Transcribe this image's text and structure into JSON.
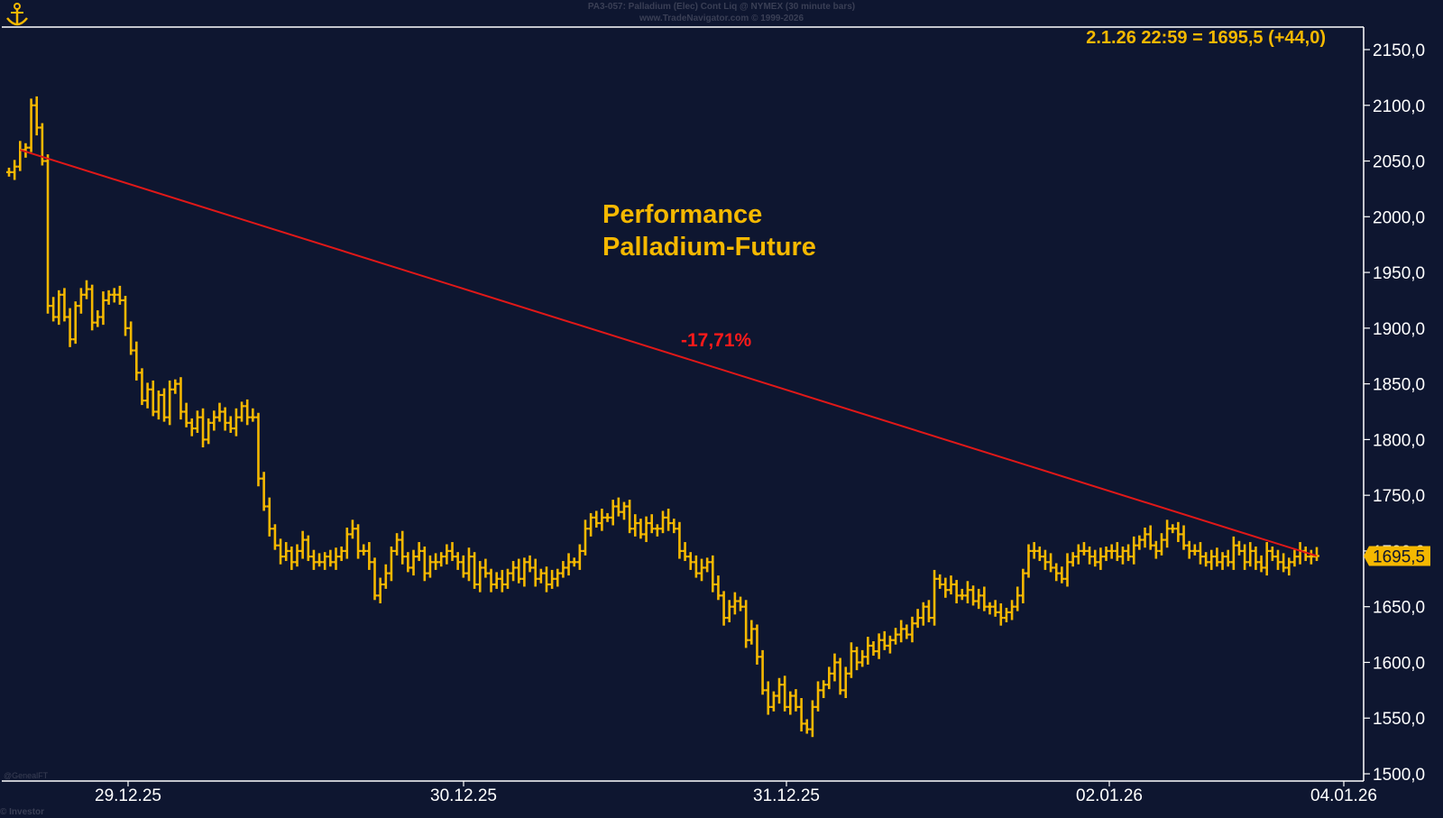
{
  "header": {
    "line1": "PA3-057:  Palladium (Elec) Cont Liq @ NYMEX  (30 minute bars)",
    "line2": "www.TradeNavigator.com © 1999-2026"
  },
  "readout": "2.1.26 22:59 = 1695,5 (+44,0)",
  "title_line1": "Performance",
  "title_line2": "Palladium-Future",
  "performance_label": "-17,71%",
  "last_price_label": "1695,5",
  "footer_left": "@GenealFT",
  "footer_bottom": "© Investor",
  "colors": {
    "background": "#0e1630",
    "bars": "#f5b800",
    "trendline": "#e01818",
    "axis": "#ffffff"
  },
  "chart_data": {
    "type": "ohlc",
    "title": "Performance Palladium-Future",
    "ylim": [
      1500,
      2150
    ],
    "y_ticks": [
      "2150,0",
      "2100,0",
      "2050,0",
      "2000,0",
      "1950,0",
      "1900,0",
      "1850,0",
      "1800,0",
      "1750,0",
      "1700,0",
      "1650,0",
      "1600,0",
      "1550,0",
      "1500,0"
    ],
    "x_ticks": [
      "29.12.25",
      "30.12.25",
      "31.12.25",
      "02.01.26",
      "04.01.26"
    ],
    "trendline": {
      "from": 2060,
      "to": 1695.5,
      "label": "-17,71%"
    },
    "last_price": 1695.5,
    "closes": [
      2040,
      2045,
      2060,
      2062,
      2100,
      2080,
      2050,
      1920,
      1910,
      1930,
      1910,
      1890,
      1920,
      1930,
      1935,
      1905,
      1910,
      1925,
      1930,
      1930,
      1925,
      1900,
      1880,
      1860,
      1835,
      1845,
      1825,
      1840,
      1820,
      1845,
      1850,
      1825,
      1815,
      1810,
      1820,
      1800,
      1815,
      1820,
      1825,
      1815,
      1810,
      1820,
      1830,
      1820,
      1820,
      1765,
      1740,
      1720,
      1705,
      1695,
      1700,
      1690,
      1700,
      1710,
      1695,
      1690,
      1690,
      1695,
      1690,
      1695,
      1700,
      1715,
      1720,
      1700,
      1700,
      1690,
      1660,
      1670,
      1680,
      1700,
      1710,
      1695,
      1685,
      1695,
      1700,
      1680,
      1690,
      1690,
      1695,
      1700,
      1695,
      1690,
      1680,
      1695,
      1670,
      1685,
      1680,
      1670,
      1675,
      1670,
      1680,
      1685,
      1675,
      1690,
      1685,
      1675,
      1680,
      1670,
      1675,
      1680,
      1685,
      1690,
      1690,
      1700,
      1720,
      1730,
      1725,
      1730,
      1730,
      1740,
      1735,
      1740,
      1720,
      1725,
      1715,
      1725,
      1720,
      1720,
      1730,
      1725,
      1720,
      1700,
      1695,
      1690,
      1680,
      1685,
      1690,
      1670,
      1660,
      1640,
      1650,
      1655,
      1650,
      1620,
      1630,
      1605,
      1575,
      1560,
      1570,
      1580,
      1560,
      1570,
      1560,
      1545,
      1540,
      1560,
      1575,
      1580,
      1590,
      1600,
      1575,
      1590,
      1610,
      1600,
      1605,
      1615,
      1610,
      1620,
      1615,
      1620,
      1625,
      1630,
      1625,
      1635,
      1640,
      1650,
      1640,
      1675,
      1670,
      1665,
      1670,
      1660,
      1660,
      1665,
      1655,
      1660,
      1650,
      1650,
      1645,
      1640,
      1645,
      1650,
      1660,
      1680,
      1700,
      1700,
      1695,
      1690,
      1685,
      1680,
      1675,
      1690,
      1695,
      1700,
      1700,
      1695,
      1690,
      1695,
      1700,
      1700,
      1695,
      1700,
      1695,
      1705,
      1710,
      1715,
      1705,
      1700,
      1710,
      1720,
      1720,
      1715,
      1705,
      1700,
      1700,
      1695,
      1690,
      1695,
      1690,
      1695,
      1690,
      1705,
      1700,
      1690,
      1700,
      1690,
      1685,
      1700,
      1695,
      1690,
      1685,
      1690,
      1695,
      1700,
      1695,
      1695,
      1695.5
    ]
  }
}
